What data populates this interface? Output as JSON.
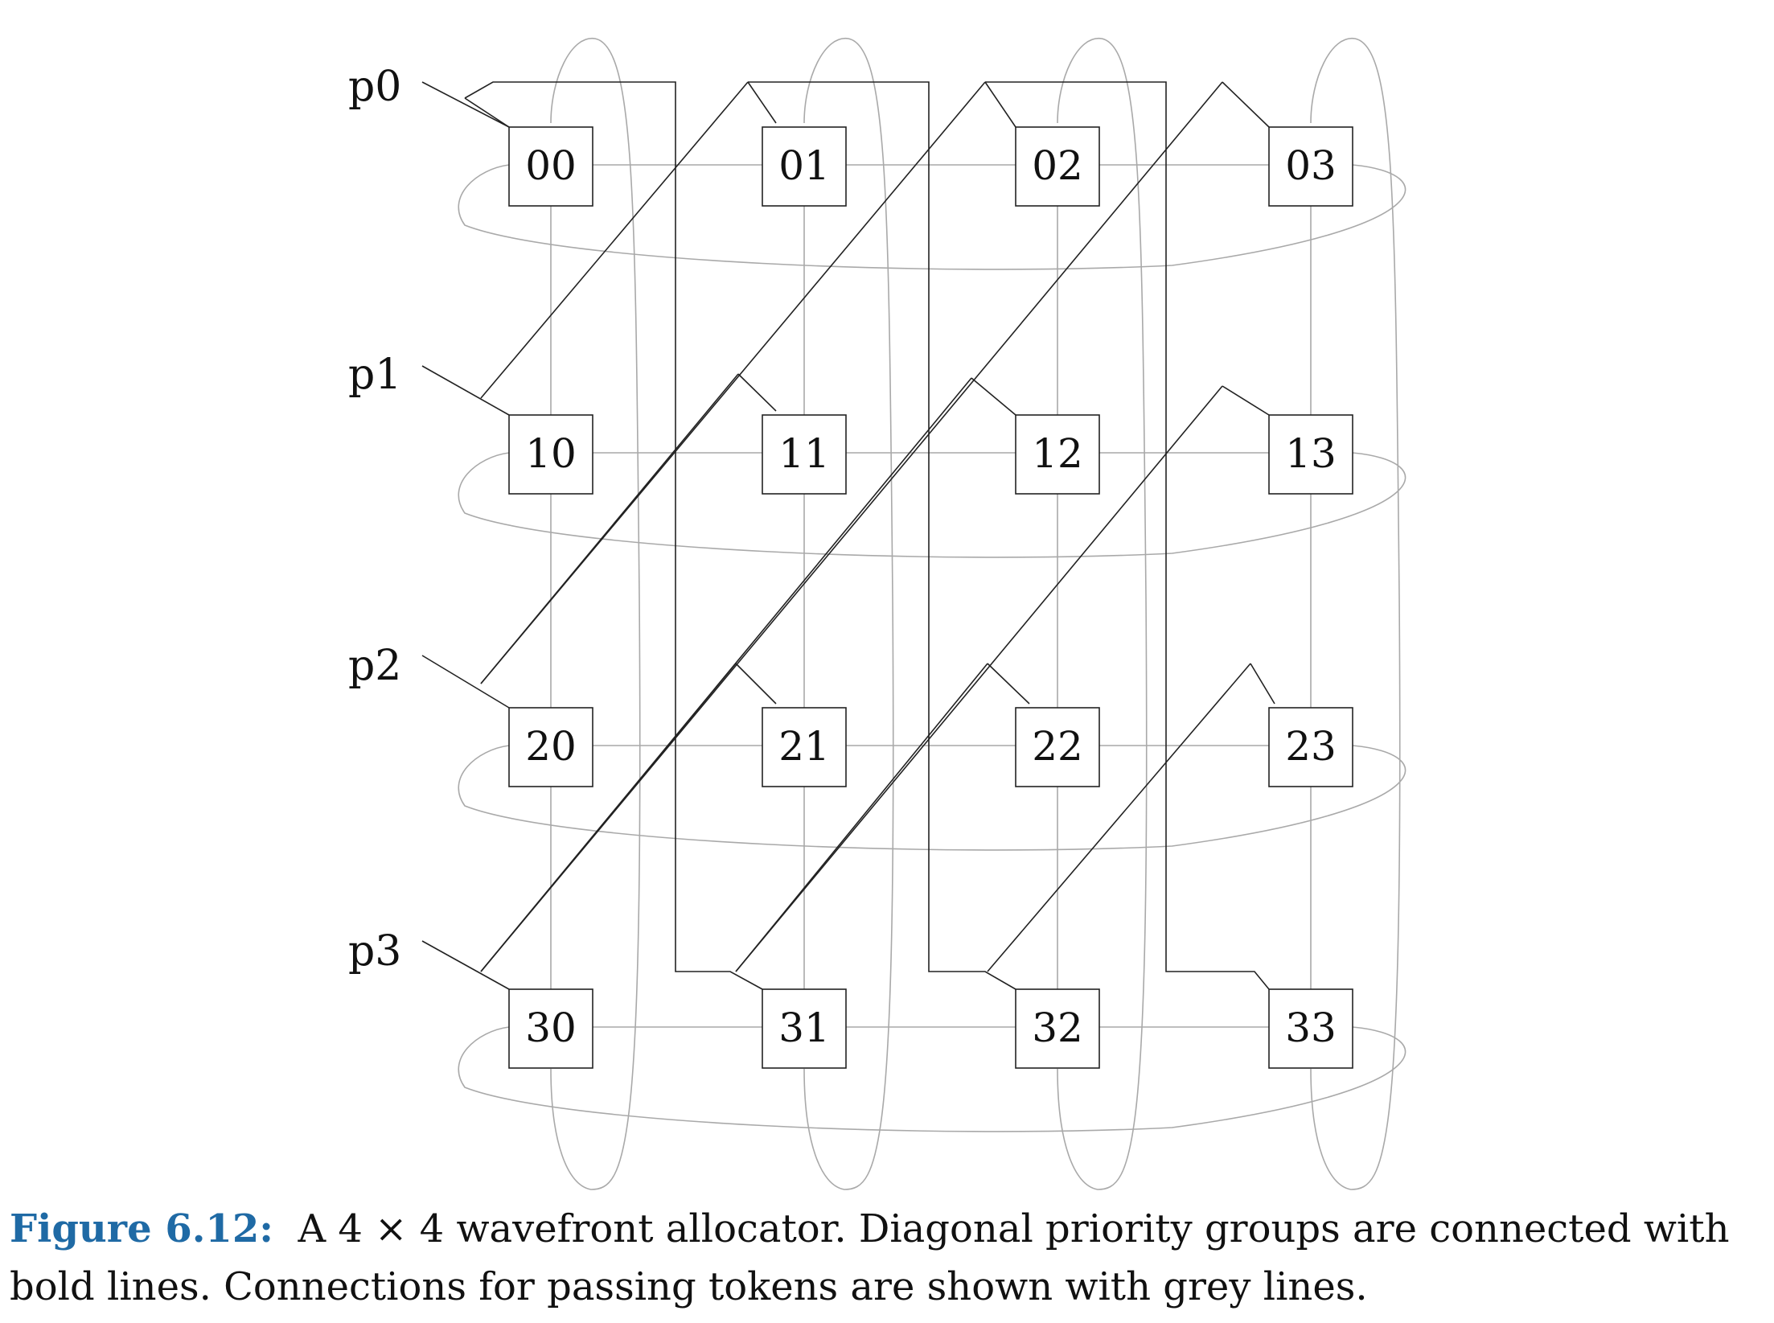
{
  "diagram": {
    "row_labels": [
      "p0",
      "p1",
      "p2",
      "p3"
    ],
    "cells": [
      [
        "00",
        "01",
        "02",
        "03"
      ],
      [
        "10",
        "11",
        "12",
        "13"
      ],
      [
        "20",
        "21",
        "22",
        "23"
      ],
      [
        "30",
        "31",
        "32",
        "33"
      ]
    ],
    "colors": {
      "bold_lines": "#222222",
      "grey_lines": "#a9a9a9",
      "figure_label": "#1f6aa5"
    }
  },
  "caption": {
    "label": "Figure 6.12:",
    "text": "A 4 × 4 wavefront allocator. Diagonal priority groups are connected with bold lines. Connections for passing tokens are shown with grey lines."
  }
}
